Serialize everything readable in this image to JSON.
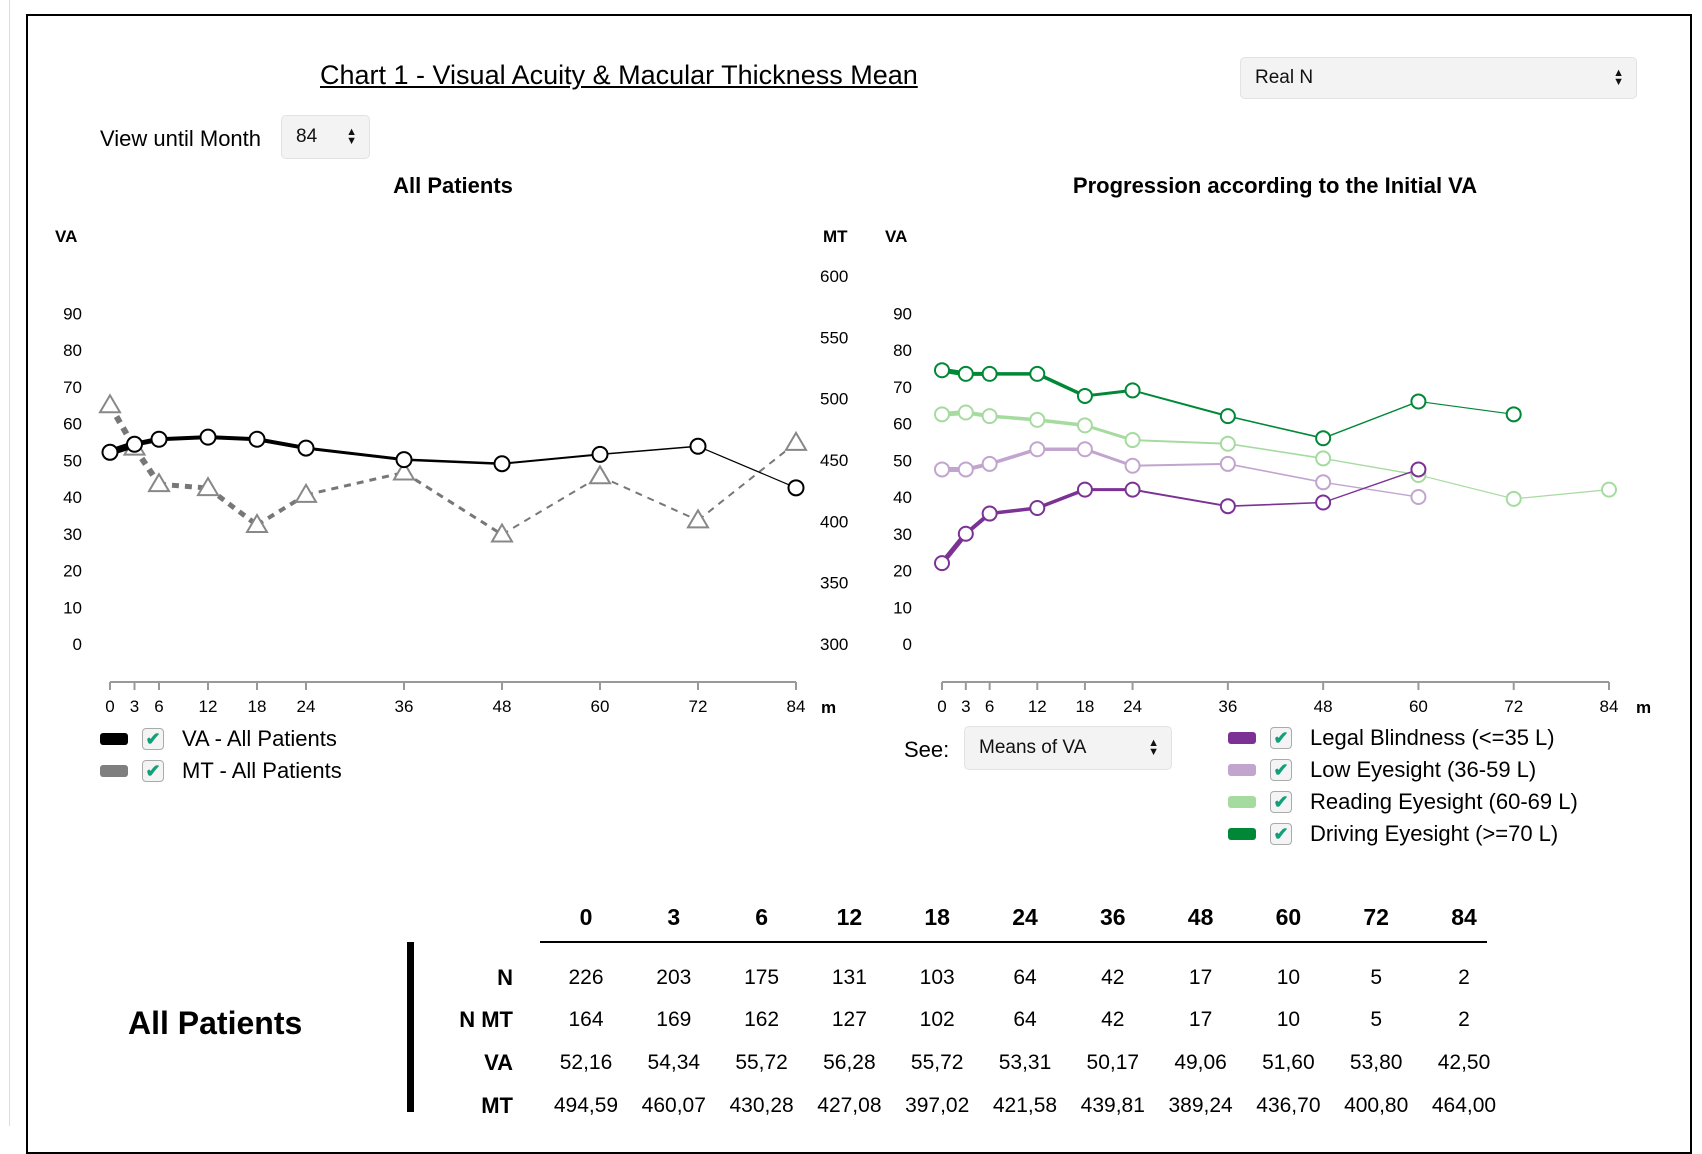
{
  "title": "Chart 1 - Visual Acuity & Macular Thickness Mean",
  "n_select": {
    "value": "Real N"
  },
  "month_select": {
    "label": "View until Month",
    "value": "84"
  },
  "see_select": {
    "label": "See:",
    "value": "Means of VA"
  },
  "left_legend": [
    {
      "label": "VA - All Patients",
      "color": "#000000"
    },
    {
      "label": "MT - All Patients",
      "color": "#7f7f7f"
    }
  ],
  "right_legend": [
    {
      "label": "Legal Blindness (<=35 L)",
      "color": "#7b3294"
    },
    {
      "label": "Low Eyesight (36-59 L)",
      "color": "#c2a5cf"
    },
    {
      "label": "Reading Eyesight (60-69 L)",
      "color": "#a6dba0"
    },
    {
      "label": "Driving Eyesight (>=70 L)",
      "color": "#008837"
    }
  ],
  "chart_data": [
    {
      "type": "line",
      "title": "All Patients",
      "ylabel": "VA",
      "y2label": "MT",
      "xunit": "m",
      "x": [
        0,
        3,
        6,
        12,
        18,
        24,
        36,
        48,
        60,
        72,
        84
      ],
      "ylim": [
        0,
        100
      ],
      "y_ticks": [
        0,
        10,
        20,
        30,
        40,
        50,
        60,
        70,
        80,
        90
      ],
      "y2lim": [
        300,
        600
      ],
      "y2_ticks": [
        300,
        350,
        400,
        450,
        500,
        550,
        600
      ],
      "series": [
        {
          "name": "VA - All Patients",
          "axis": "y",
          "values": [
            52.16,
            54.34,
            55.72,
            56.28,
            55.72,
            53.31,
            50.17,
            49.06,
            51.6,
            53.8,
            42.5
          ]
        },
        {
          "name": "MT - All Patients",
          "axis": "y2",
          "values": [
            494.59,
            460.07,
            430.28,
            427.08,
            397.02,
            421.58,
            439.81,
            389.24,
            436.7,
            400.8,
            464.0
          ]
        }
      ]
    },
    {
      "type": "line",
      "title": "Progression according to the Initial VA",
      "ylabel": "VA",
      "xunit": "m",
      "x": [
        0,
        3,
        6,
        12,
        18,
        24,
        36,
        48,
        60,
        72,
        84
      ],
      "ylim": [
        0,
        100
      ],
      "y_ticks": [
        0,
        10,
        20,
        30,
        40,
        50,
        60,
        70,
        80,
        90
      ],
      "series": [
        {
          "name": "Legal Blindness (<=35 L)",
          "x": [
            0,
            3,
            6,
            12,
            18,
            24,
            36,
            48,
            60
          ],
          "values": [
            22,
            30,
            35.5,
            37,
            42,
            42,
            37.5,
            38.5,
            47.5
          ]
        },
        {
          "name": "Low Eyesight (36-59 L)",
          "x": [
            0,
            3,
            6,
            12,
            18,
            24,
            36,
            48,
            60
          ],
          "values": [
            47.5,
            47.5,
            49,
            53,
            53,
            48.5,
            49,
            44,
            40
          ]
        },
        {
          "name": "Reading Eyesight (60-69 L)",
          "x": [
            0,
            3,
            6,
            12,
            18,
            24,
            36,
            48,
            60,
            72,
            84
          ],
          "values": [
            62.5,
            63,
            62,
            61,
            59.5,
            55.5,
            54.5,
            50.5,
            46,
            39.5,
            42
          ]
        },
        {
          "name": "Driving Eyesight (>=70 L)",
          "x": [
            0,
            3,
            6,
            12,
            18,
            24,
            36,
            48,
            60,
            72
          ],
          "values": [
            74.5,
            73.5,
            73.5,
            73.5,
            67.5,
            69,
            62,
            56,
            66,
            62.5
          ]
        }
      ]
    },
    {
      "type": "table",
      "title": "All Patients",
      "columns": [
        "0",
        "3",
        "6",
        "12",
        "18",
        "24",
        "36",
        "48",
        "60",
        "72",
        "84"
      ],
      "rows": [
        {
          "label": "N",
          "values": [
            "226",
            "203",
            "175",
            "131",
            "103",
            "64",
            "42",
            "17",
            "10",
            "5",
            "2"
          ]
        },
        {
          "label": "N MT",
          "values": [
            "164",
            "169",
            "162",
            "127",
            "102",
            "64",
            "42",
            "17",
            "10",
            "5",
            "2"
          ]
        },
        {
          "label": "VA",
          "values": [
            "52,16",
            "54,34",
            "55,72",
            "56,28",
            "55,72",
            "53,31",
            "50,17",
            "49,06",
            "51,60",
            "53,80",
            "42,50"
          ]
        },
        {
          "label": "MT",
          "values": [
            "494,59",
            "460,07",
            "430,28",
            "427,08",
            "397,02",
            "421,58",
            "439,81",
            "389,24",
            "436,70",
            "400,80",
            "464,00"
          ]
        }
      ]
    }
  ]
}
